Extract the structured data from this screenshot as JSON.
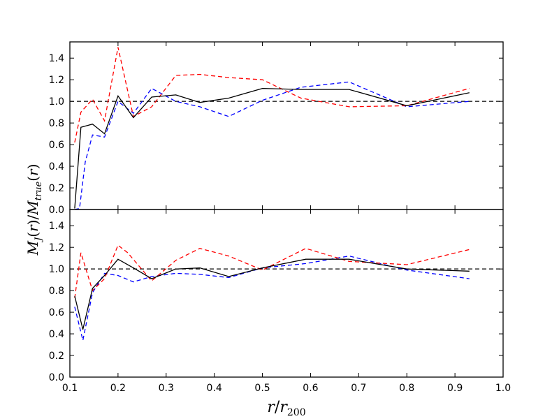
{
  "chart_data": [
    {
      "type": "line",
      "panel": "top",
      "xlim": [
        0.1,
        1.0
      ],
      "ylim": [
        0.0,
        1.55
      ],
      "yticks": [
        "0.0",
        "0.2",
        "0.4",
        "0.6",
        "0.8",
        "1.0",
        "1.2",
        "1.4"
      ],
      "xticks": [],
      "reference_line": 1.0,
      "series": [
        {
          "color": "#000000",
          "style": "solid",
          "x": [
            0.11,
            0.123,
            0.147,
            0.172,
            0.2,
            0.232,
            0.27,
            0.32,
            0.37,
            0.43,
            0.5,
            0.58,
            0.68,
            0.8,
            0.93
          ],
          "y": [
            0.01,
            0.76,
            0.79,
            0.7,
            1.05,
            0.85,
            1.04,
            1.06,
            0.99,
            1.03,
            1.12,
            1.11,
            1.11,
            0.96,
            1.08
          ]
        },
        {
          "color": "#0000ff",
          "style": "dashed",
          "x": [
            0.11,
            0.12,
            0.132,
            0.147,
            0.172,
            0.2,
            0.232,
            0.27,
            0.32,
            0.37,
            0.43,
            0.5,
            0.58,
            0.68,
            0.8,
            0.93
          ],
          "y": [
            0.0,
            0.01,
            0.44,
            0.69,
            0.67,
            1.0,
            0.89,
            1.12,
            1.0,
            0.95,
            0.86,
            1.01,
            1.13,
            1.18,
            0.95,
            1.0
          ]
        },
        {
          "color": "#ff0000",
          "style": "dashed",
          "x": [
            0.11,
            0.123,
            0.147,
            0.172,
            0.2,
            0.232,
            0.27,
            0.32,
            0.37,
            0.43,
            0.5,
            0.58,
            0.68,
            0.8,
            0.93
          ],
          "y": [
            0.62,
            0.9,
            1.02,
            0.82,
            1.5,
            0.86,
            0.95,
            1.24,
            1.25,
            1.22,
            1.2,
            1.03,
            0.95,
            0.96,
            1.12
          ]
        }
      ]
    },
    {
      "type": "line",
      "panel": "bottom",
      "xlim": [
        0.1,
        1.0
      ],
      "ylim": [
        0.0,
        1.55
      ],
      "yticks": [
        "0.0",
        "0.2",
        "0.4",
        "0.6",
        "0.8",
        "1.0",
        "1.2",
        "1.4"
      ],
      "xticks": [
        "0.1",
        "0.2",
        "0.3",
        "0.4",
        "0.5",
        "0.6",
        "0.7",
        "0.8",
        "0.9",
        "1.0"
      ],
      "reference_line": 1.0,
      "series": [
        {
          "color": "#000000",
          "style": "solid",
          "x": [
            0.11,
            0.127,
            0.147,
            0.172,
            0.2,
            0.232,
            0.27,
            0.32,
            0.37,
            0.43,
            0.5,
            0.59,
            0.68,
            0.8,
            0.93
          ],
          "y": [
            0.75,
            0.44,
            0.82,
            0.94,
            1.09,
            1.01,
            0.91,
            1.0,
            1.01,
            0.93,
            1.01,
            1.09,
            1.09,
            1.0,
            0.98
          ]
        },
        {
          "color": "#0000ff",
          "style": "dashed",
          "x": [
            0.11,
            0.127,
            0.147,
            0.172,
            0.2,
            0.232,
            0.27,
            0.32,
            0.37,
            0.43,
            0.5,
            0.59,
            0.68,
            0.8,
            0.93
          ],
          "y": [
            0.65,
            0.34,
            0.78,
            0.96,
            0.94,
            0.88,
            0.93,
            0.96,
            0.95,
            0.92,
            1.01,
            1.05,
            1.12,
            0.99,
            0.91
          ]
        },
        {
          "color": "#ff0000",
          "style": "dashed",
          "x": [
            0.11,
            0.123,
            0.147,
            0.172,
            0.2,
            0.22,
            0.27,
            0.32,
            0.37,
            0.43,
            0.5,
            0.59,
            0.68,
            0.8,
            0.93
          ],
          "y": [
            0.73,
            1.15,
            0.8,
            0.91,
            1.22,
            1.15,
            0.89,
            1.08,
            1.19,
            1.12,
            0.99,
            1.19,
            1.07,
            1.04,
            1.18
          ]
        }
      ]
    }
  ],
  "labels": {
    "ylabel": "M_J(r)/M_true(r)",
    "xlabel": "r/r_200"
  }
}
